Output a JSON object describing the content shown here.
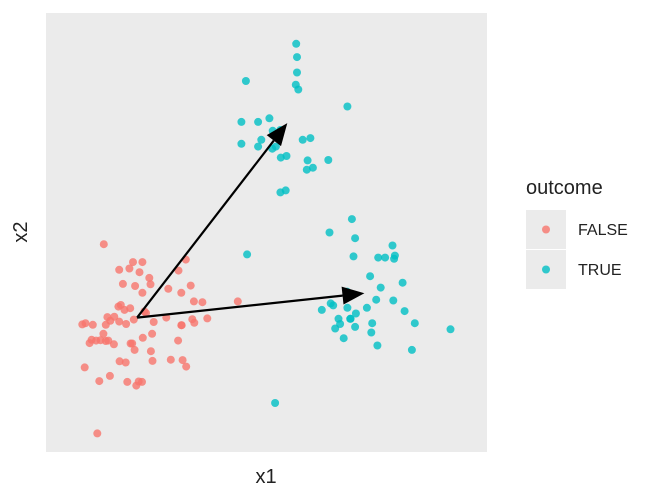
{
  "chart_data": {
    "type": "scatter",
    "xlabel": "x1",
    "ylabel": "x2",
    "xlim": [
      0,
      100
    ],
    "ylim": [
      0,
      100
    ],
    "grid": false,
    "legend": {
      "title": "outcome",
      "position": "right"
    },
    "series": [
      {
        "name": "FALSE",
        "color": "#F8766D",
        "points": [
          [
            9.8,
            47.1
          ],
          [
            17.0,
            42.7
          ],
          [
            19.3,
            42.7
          ],
          [
            16.1,
            41.1
          ],
          [
            13.6,
            40.8
          ],
          [
            18.6,
            40.2
          ],
          [
            21.0,
            38.8
          ],
          [
            30.0,
            43.3
          ],
          [
            28.2,
            40.6
          ],
          [
            31.2,
            36.9
          ],
          [
            14.5,
            37.3
          ],
          [
            21.3,
            37.2
          ],
          [
            17.5,
            36.8
          ],
          [
            25.7,
            36.1
          ],
          [
            19.3,
            35.1
          ],
          [
            28.9,
            35.1
          ],
          [
            32.0,
            33.0
          ],
          [
            34.1,
            32.8
          ],
          [
            42.8,
            33.0
          ],
          [
            14.0,
            32.1
          ],
          [
            19.8,
            30.5
          ],
          [
            20.2,
            30.1
          ],
          [
            13.4,
            31.7
          ],
          [
            14.9,
            30.9
          ],
          [
            16.3,
            31.3
          ],
          [
            10.7,
            29.1
          ],
          [
            11.4,
            28.2
          ],
          [
            12.4,
            29.2
          ],
          [
            25.2,
            29.0
          ],
          [
            17.2,
            28.5
          ],
          [
            22.1,
            27.9
          ],
          [
            13.6,
            28.0
          ],
          [
            28.9,
            27.1
          ],
          [
            29.0,
            27.1
          ],
          [
            35.3,
            28.8
          ],
          [
            31.6,
            28.6
          ],
          [
            32.1,
            27.7
          ],
          [
            10.3,
            27.2
          ],
          [
            4.5,
            27.3
          ],
          [
            5.3,
            27.6
          ],
          [
            7.1,
            27.2
          ],
          [
            15.3,
            27.4
          ],
          [
            9.7,
            25.0
          ],
          [
            21.7,
            25.0
          ],
          [
            19.4,
            24.0
          ],
          [
            16.4,
            22.6
          ],
          [
            12.3,
            22.4
          ],
          [
            7.9,
            23.3
          ],
          [
            6.8,
            23.5
          ],
          [
            10.3,
            23.2
          ],
          [
            16.8,
            22.6
          ],
          [
            9.0,
            23.4
          ],
          [
            10.9,
            23.3
          ],
          [
            6.3,
            22.7
          ],
          [
            28.1,
            23.3
          ],
          [
            17.4,
            21.0
          ],
          [
            21.4,
            20.7
          ],
          [
            13.7,
            18.2
          ],
          [
            15.2,
            17.9
          ],
          [
            21.8,
            18.3
          ],
          [
            26.3,
            18.6
          ],
          [
            29.2,
            18.5
          ],
          [
            30.1,
            16.9
          ],
          [
            11.3,
            14.6
          ],
          [
            15.6,
            13.1
          ],
          [
            18.4,
            13.2
          ],
          [
            19.2,
            13.1
          ],
          [
            17.8,
            12.2
          ],
          [
            8.7,
            13.3
          ],
          [
            5.1,
            16.7
          ],
          [
            8.2,
            0.4
          ]
        ]
      },
      {
        "name": "TRUE",
        "color": "#00BFC4",
        "points": [
          [
            57.2,
            96.6
          ],
          [
            57.4,
            93.3
          ],
          [
            57.4,
            89.5
          ],
          [
            57.1,
            86.5
          ],
          [
            57.7,
            85.3
          ],
          [
            44.8,
            87.4
          ],
          [
            69.8,
            81.1
          ],
          [
            43.7,
            77.3
          ],
          [
            50.6,
            78.2
          ],
          [
            47.8,
            77.3
          ],
          [
            51.4,
            75.1
          ],
          [
            53.3,
            75.3
          ],
          [
            58.8,
            72.9
          ],
          [
            60.7,
            73.3
          ],
          [
            48.6,
            72.9
          ],
          [
            52.2,
            71.2
          ],
          [
            43.7,
            71.9
          ],
          [
            47.8,
            71.2
          ],
          [
            53.4,
            68.5
          ],
          [
            54.8,
            68.9
          ],
          [
            51.3,
            70.7
          ],
          [
            61.3,
            66.0
          ],
          [
            60.0,
            67.8
          ],
          [
            65.1,
            67.9
          ],
          [
            59.8,
            65.5
          ],
          [
            54.6,
            60.4
          ],
          [
            53.3,
            59.9
          ],
          [
            70.9,
            53.3
          ],
          [
            65.4,
            50.0
          ],
          [
            71.7,
            48.6
          ],
          [
            80.9,
            46.8
          ],
          [
            79.1,
            43.8
          ],
          [
            77.4,
            43.8
          ],
          [
            81.3,
            43.5
          ],
          [
            81.5,
            44.3
          ],
          [
            45.1,
            44.6
          ],
          [
            71.3,
            44.1
          ],
          [
            75.4,
            39.2
          ],
          [
            83.4,
            37.6
          ],
          [
            69.7,
            35.4
          ],
          [
            65.7,
            32.5
          ],
          [
            66.3,
            32.0
          ],
          [
            78.0,
            36.4
          ],
          [
            76.9,
            33.4
          ],
          [
            81.1,
            33.2
          ],
          [
            70.6,
            28.7
          ],
          [
            71.7,
            26.7
          ],
          [
            66.8,
            26.3
          ],
          [
            69.8,
            31.4
          ],
          [
            70.5,
            28.7
          ],
          [
            63.5,
            30.9
          ],
          [
            67.6,
            28.7
          ],
          [
            74.6,
            31.4
          ],
          [
            75.9,
            27.6
          ],
          [
            71.9,
            30.0
          ],
          [
            68.0,
            27.4
          ],
          [
            83.9,
            30.6
          ],
          [
            86.4,
            27.6
          ],
          [
            95.2,
            26.1
          ],
          [
            75.7,
            25.3
          ],
          [
            68.9,
            23.9
          ],
          [
            77.2,
            22.1
          ],
          [
            85.7,
            21.0
          ],
          [
            52.0,
            7.9
          ]
        ]
      }
    ],
    "vectors": [
      {
        "from": [
          18.0,
          29.0
        ],
        "to": [
          55.0,
          77.0
        ]
      },
      {
        "from": [
          18.0,
          29.0
        ],
        "to": [
          74.0,
          35.0
        ]
      }
    ]
  }
}
